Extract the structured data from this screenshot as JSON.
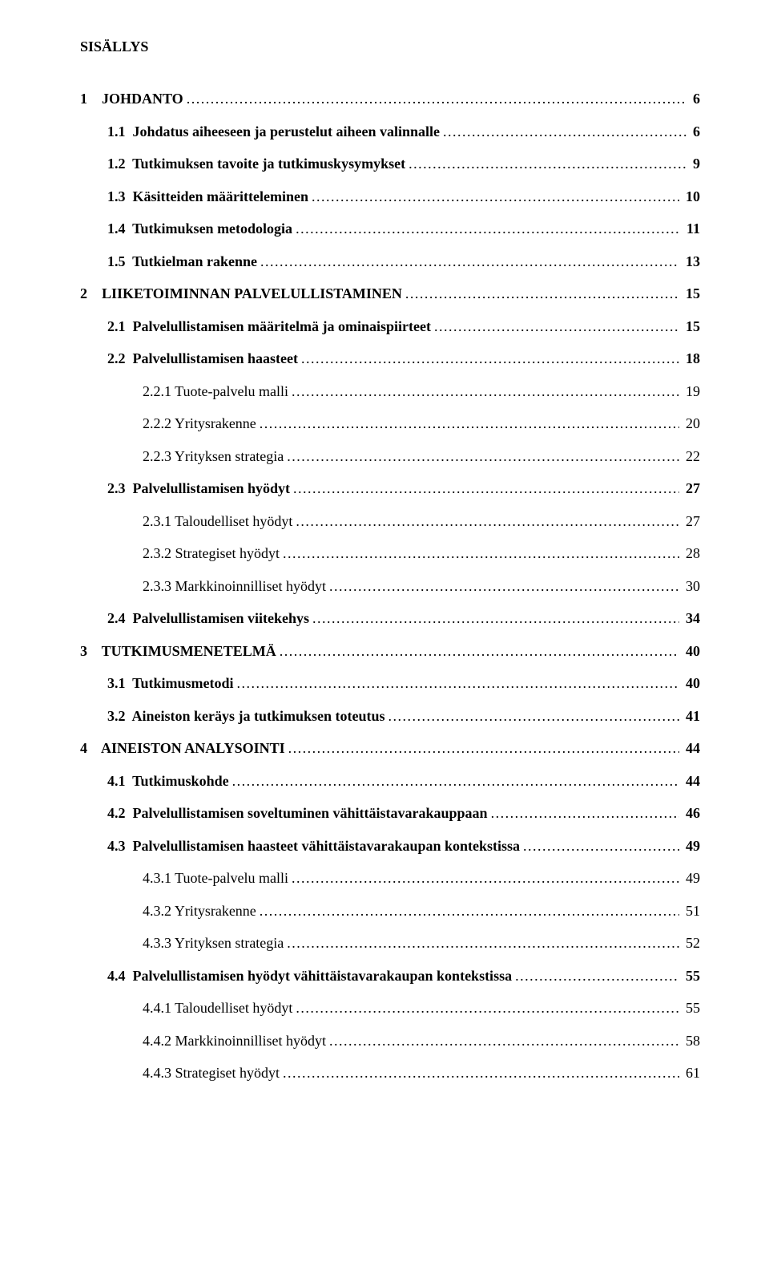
{
  "title": "SISÄLLYS",
  "toc": [
    {
      "level": 1,
      "bold": true,
      "label": "1    JOHDANTO",
      "page": "6"
    },
    {
      "level": 2,
      "bold": true,
      "label": "1.1  Johdatus aiheeseen ja perustelut aiheen valinnalle",
      "page": "6"
    },
    {
      "level": 2,
      "bold": true,
      "label": "1.2  Tutkimuksen tavoite ja tutkimuskysymykset",
      "page": "9"
    },
    {
      "level": 2,
      "bold": true,
      "label": "1.3  Käsitteiden määritteleminen",
      "page": "10"
    },
    {
      "level": 2,
      "bold": true,
      "label": "1.4  Tutkimuksen metodologia",
      "page": "11"
    },
    {
      "level": 2,
      "bold": true,
      "label": "1.5  Tutkielman rakenne",
      "page": "13"
    },
    {
      "level": 1,
      "bold": true,
      "label": "2    LIIKETOIMINNAN PALVELULLISTAMINEN",
      "page": "15"
    },
    {
      "level": 2,
      "bold": true,
      "label": "2.1  Palvelullistamisen määritelmä ja ominaispiirteet",
      "page": "15"
    },
    {
      "level": 2,
      "bold": true,
      "label": "2.2  Palvelullistamisen haasteet",
      "page": "18"
    },
    {
      "level": 3,
      "bold": false,
      "label": "2.2.1 Tuote-palvelu malli",
      "page": "19"
    },
    {
      "level": 3,
      "bold": false,
      "label": "2.2.2 Yritysrakenne",
      "page": "20"
    },
    {
      "level": 3,
      "bold": false,
      "label": "2.2.3 Yrityksen strategia",
      "page": "22"
    },
    {
      "level": 2,
      "bold": true,
      "label": "2.3  Palvelullistamisen hyödyt",
      "page": "27"
    },
    {
      "level": 3,
      "bold": false,
      "label": "2.3.1 Taloudelliset hyödyt",
      "page": "27"
    },
    {
      "level": 3,
      "bold": false,
      "label": "2.3.2 Strategiset hyödyt",
      "page": "28"
    },
    {
      "level": 3,
      "bold": false,
      "label": "2.3.3 Markkinoinnilliset hyödyt",
      "page": "30"
    },
    {
      "level": 2,
      "bold": true,
      "label": "2.4  Palvelullistamisen viitekehys",
      "page": "34"
    },
    {
      "level": 1,
      "bold": true,
      "label": "3    TUTKIMUSMENETELMÄ",
      "page": "40"
    },
    {
      "level": 2,
      "bold": true,
      "label": "3.1  Tutkimusmetodi",
      "page": "40"
    },
    {
      "level": 2,
      "bold": true,
      "label": "3.2  Aineiston keräys ja tutkimuksen toteutus",
      "page": "41"
    },
    {
      "level": 1,
      "bold": true,
      "label": "4    AINEISTON ANALYSOINTI",
      "page": "44"
    },
    {
      "level": 2,
      "bold": true,
      "label": "4.1  Tutkimuskohde",
      "page": "44"
    },
    {
      "level": 2,
      "bold": true,
      "label": "4.2  Palvelullistamisen soveltuminen vähittäistavarakauppaan",
      "page": "46"
    },
    {
      "level": 2,
      "bold": true,
      "label": "4.3  Palvelullistamisen haasteet vähittäistavarakaupan kontekstissa",
      "page": "49"
    },
    {
      "level": 3,
      "bold": false,
      "label": "4.3.1 Tuote-palvelu malli",
      "page": "49"
    },
    {
      "level": 3,
      "bold": false,
      "label": "4.3.2 Yritysrakenne",
      "page": "51"
    },
    {
      "level": 3,
      "bold": false,
      "label": "4.3.3 Yrityksen strategia",
      "page": "52"
    },
    {
      "level": 2,
      "bold": true,
      "label": "4.4  Palvelullistamisen hyödyt vähittäistavarakaupan kontekstissa",
      "page": "55"
    },
    {
      "level": 3,
      "bold": false,
      "label": "4.4.1 Taloudelliset hyödyt",
      "page": "55"
    },
    {
      "level": 3,
      "bold": false,
      "label": "4.4.2 Markkinoinnilliset hyödyt",
      "page": "58"
    },
    {
      "level": 3,
      "bold": false,
      "label": "4.4.3 Strategiset hyödyt",
      "page": "61"
    }
  ]
}
